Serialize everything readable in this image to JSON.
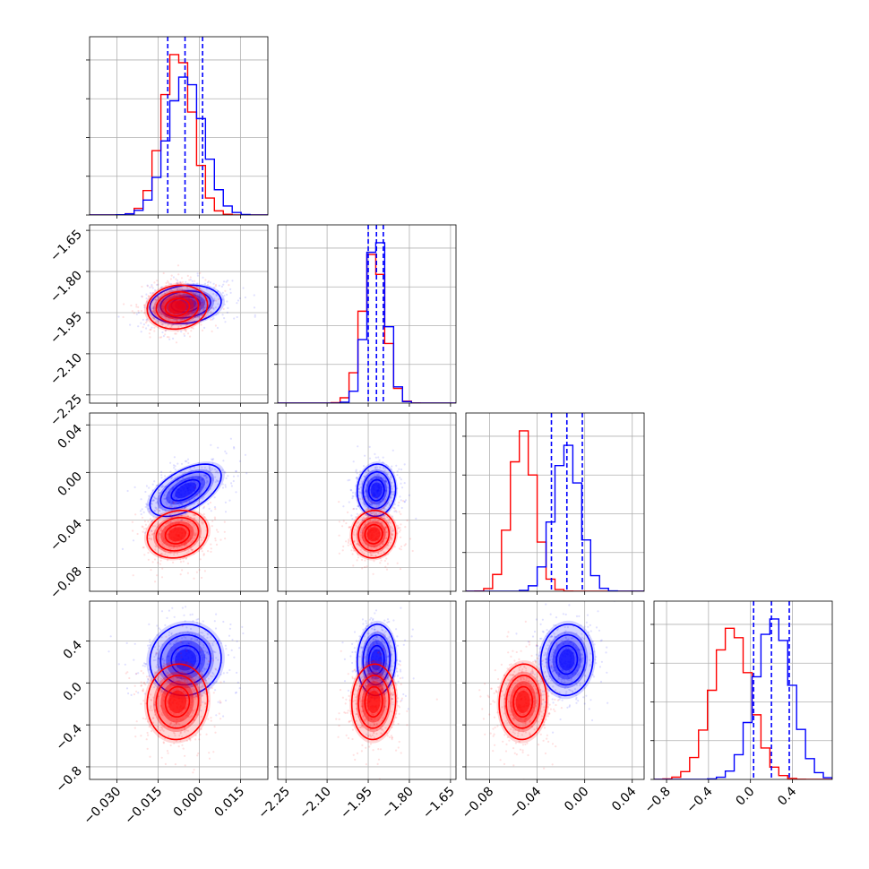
{
  "chart_data": {
    "type": "corner",
    "grid": true,
    "colors": {
      "series_a": "#0000ff",
      "series_b": "#ff0000"
    },
    "parameters": [
      {
        "range": [
          -0.04,
          0.025
        ],
        "ticks": [
          "−0.030",
          "−0.015",
          "0.000",
          "0.015"
        ],
        "tick_values": [
          -0.03,
          -0.015,
          0.0,
          0.015
        ],
        "quantiles_series_a": [
          -0.0115,
          -0.0052,
          0.0012
        ]
      },
      {
        "range": [
          -2.28,
          -1.63
        ],
        "ticks": [
          "−2.25",
          "−2.10",
          "−1.95",
          "−1.80",
          "−1.65"
        ],
        "tick_values": [
          -2.25,
          -2.1,
          -1.95,
          -1.8,
          -1.65
        ],
        "quantiles_series_a": [
          -1.95,
          -1.92,
          -1.895
        ]
      },
      {
        "range": [
          -0.1,
          0.05
        ],
        "ticks": [
          "−0.08",
          "−0.04",
          "0.00",
          "0.04"
        ],
        "tick_values": [
          -0.08,
          -0.04,
          0.0,
          0.04
        ],
        "quantiles_series_a": [
          -0.028,
          -0.015,
          -0.002
        ]
      },
      {
        "range": [
          -0.92,
          0.78
        ],
        "ticks": [
          "−0.8",
          "−0.4",
          "0.0",
          "0.4"
        ],
        "tick_values": [
          -0.8,
          -0.4,
          0.0,
          0.4
        ],
        "quantiles_series_a": [
          0.03,
          0.2,
          0.37
        ]
      }
    ],
    "series": [
      {
        "name": "",
        "color": "#0000ff",
        "mean": [
          -0.005,
          -1.92,
          -0.015,
          0.22
        ],
        "std": [
          0.0065,
          0.035,
          0.011,
          0.17
        ]
      },
      {
        "name": "",
        "color": "#ff0000",
        "mean": [
          -0.008,
          -1.93,
          -0.052,
          -0.18
        ],
        "std": [
          0.0055,
          0.04,
          0.01,
          0.18
        ]
      }
    ]
  }
}
